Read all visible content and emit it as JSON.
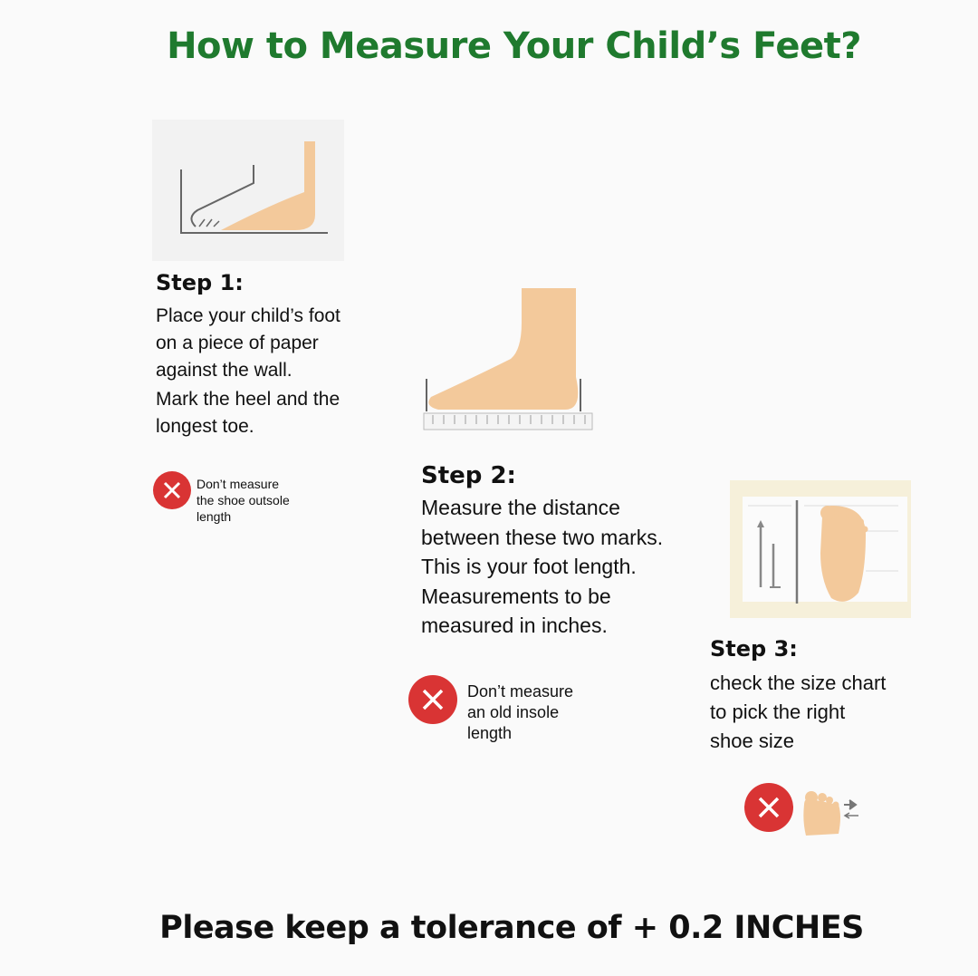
{
  "title": "How to Measure Your Child’s Feet?",
  "colors": {
    "title": "#1f7a2e",
    "skin": "#f3c99b",
    "warning": "#d93434"
  },
  "steps": [
    {
      "heading": "Step 1:",
      "lines": [
        "Place your child’s foot",
        "on a piece of paper",
        "against the wall.",
        "Mark the heel and the",
        "longest toe."
      ],
      "warning_lines": [
        "Don’t measure",
        "the shoe outsole",
        "length"
      ],
      "icon": "foot-against-wall-icon"
    },
    {
      "heading": "Step 2:",
      "lines": [
        "Measure the distance",
        "between these two marks.",
        "This is your foot length.",
        "Measurements to be",
        "measured in inches."
      ],
      "warning_lines": [
        "Don’t measure",
        "an old insole",
        "length"
      ],
      "icon": "foot-on-ruler-icon"
    },
    {
      "heading": "Step 3:",
      "lines": [
        "check the size chart",
        "to pick the right",
        "shoe size"
      ],
      "icon": "size-chart-icon"
    }
  ],
  "footer": "Please keep a tolerance of + 0.2 INCHES"
}
